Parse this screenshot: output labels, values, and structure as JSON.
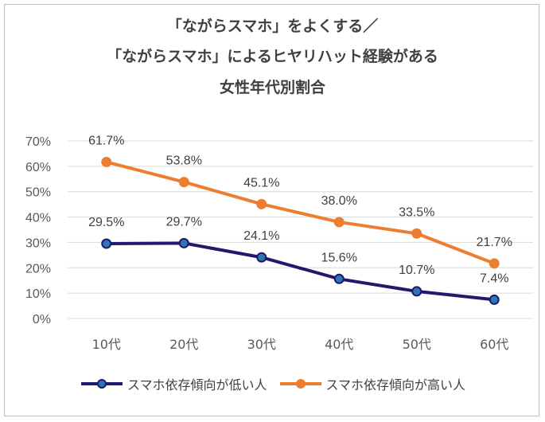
{
  "chart_data": {
    "type": "line",
    "title": [
      "「ながらスマホ」をよくする／",
      "「ながらスマホ」によるヒヤリハット経験がある",
      "女性年代別割合"
    ],
    "categories": [
      "10代",
      "20代",
      "30代",
      "40代",
      "50代",
      "60代"
    ],
    "ylim": [
      0,
      70
    ],
    "yticks": [
      "0%",
      "10%",
      "20%",
      "30%",
      "40%",
      "50%",
      "60%",
      "70%"
    ],
    "grid": true,
    "legend_position": "bottom",
    "series": [
      {
        "name": "スマホ依存傾向が低い人",
        "values": [
          29.5,
          29.7,
          24.1,
          15.6,
          10.7,
          7.4
        ],
        "labels": [
          "29.5%",
          "29.7%",
          "24.1%",
          "15.6%",
          "10.7%",
          "7.4%"
        ],
        "color": "#1f1a6b",
        "marker_fill": "#2e75b6"
      },
      {
        "name": "スマホ依存傾向が高い人",
        "values": [
          61.7,
          53.8,
          45.1,
          38.0,
          33.5,
          21.7
        ],
        "labels": [
          "61.7%",
          "53.8%",
          "45.1%",
          "38.0%",
          "33.5%",
          "21.7%"
        ],
        "color": "#ed7d31",
        "marker_fill": "#ed7d31"
      }
    ]
  }
}
